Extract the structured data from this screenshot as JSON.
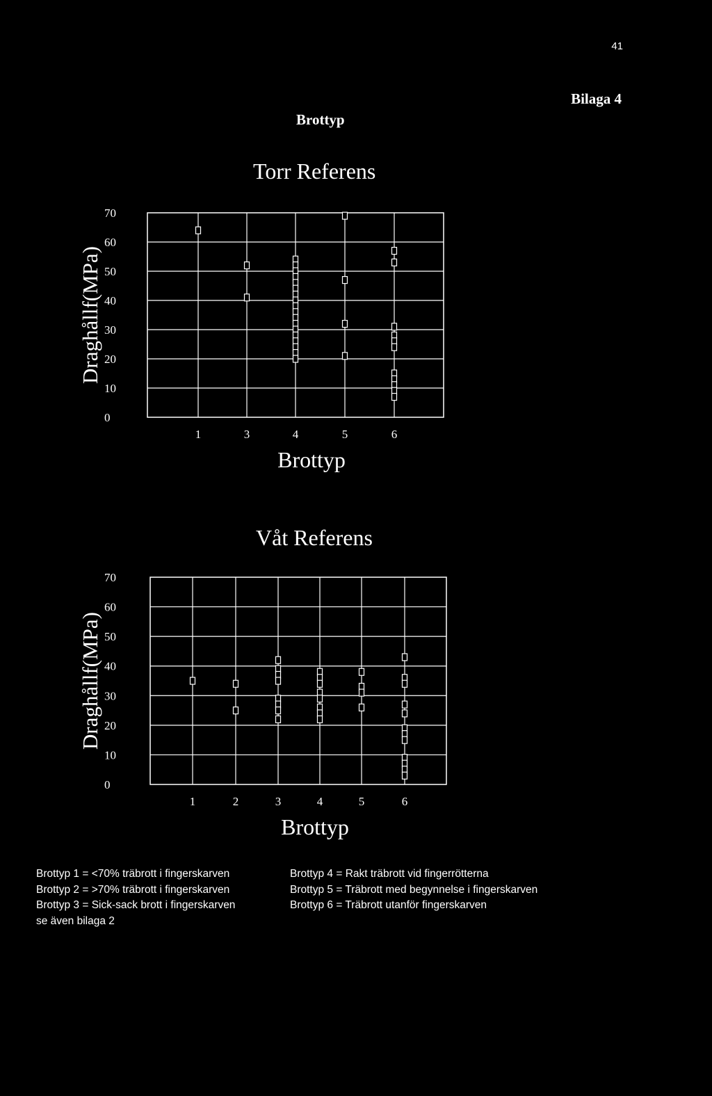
{
  "page_number": "41",
  "appendix_label": "Bilaga 4",
  "heading": "Brottyp",
  "chart_data": [
    {
      "type": "scatter",
      "title": "Torr Referens",
      "xlabel": "Brottyp",
      "ylabel": "Draghållf(MPa)",
      "categories": [
        "1",
        "3",
        "4",
        "5",
        "6"
      ],
      "yticks": [
        0,
        10,
        20,
        30,
        40,
        50,
        60,
        70
      ],
      "ylim": [
        0,
        70
      ],
      "grid": true,
      "points": [
        {
          "x": "1",
          "y": 64
        },
        {
          "x": "3",
          "y": 52
        },
        {
          "x": "3",
          "y": 41
        },
        {
          "x": "4",
          "y": 54
        },
        {
          "x": "4",
          "y": 52
        },
        {
          "x": "4",
          "y": 50
        },
        {
          "x": "4",
          "y": 48
        },
        {
          "x": "4",
          "y": 46
        },
        {
          "x": "4",
          "y": 44
        },
        {
          "x": "4",
          "y": 42
        },
        {
          "x": "4",
          "y": 40
        },
        {
          "x": "4",
          "y": 38
        },
        {
          "x": "4",
          "y": 36
        },
        {
          "x": "4",
          "y": 34
        },
        {
          "x": "4",
          "y": 32
        },
        {
          "x": "4",
          "y": 30
        },
        {
          "x": "4",
          "y": 28
        },
        {
          "x": "4",
          "y": 26
        },
        {
          "x": "4",
          "y": 24
        },
        {
          "x": "4",
          "y": 22
        },
        {
          "x": "4",
          "y": 20
        },
        {
          "x": "5",
          "y": 69
        },
        {
          "x": "5",
          "y": 47
        },
        {
          "x": "5",
          "y": 32
        },
        {
          "x": "5",
          "y": 21
        },
        {
          "x": "6",
          "y": 57
        },
        {
          "x": "6",
          "y": 53
        },
        {
          "x": "6",
          "y": 31
        },
        {
          "x": "6",
          "y": 28
        },
        {
          "x": "6",
          "y": 26
        },
        {
          "x": "6",
          "y": 24
        },
        {
          "x": "6",
          "y": 15
        },
        {
          "x": "6",
          "y": 13
        },
        {
          "x": "6",
          "y": 11
        },
        {
          "x": "6",
          "y": 9
        },
        {
          "x": "6",
          "y": 7
        }
      ]
    },
    {
      "type": "scatter",
      "title": "Våt Referens",
      "xlabel": "Brottyp",
      "ylabel": "Draghållf(MPa)",
      "categories": [
        "1",
        "2",
        "3",
        "4",
        "5",
        "6"
      ],
      "yticks": [
        0,
        10,
        20,
        30,
        40,
        50,
        60,
        70
      ],
      "ylim": [
        0,
        70
      ],
      "grid": true,
      "points": [
        {
          "x": "1",
          "y": 35
        },
        {
          "x": "2",
          "y": 34
        },
        {
          "x": "2",
          "y": 25
        },
        {
          "x": "3",
          "y": 42
        },
        {
          "x": "3",
          "y": 39
        },
        {
          "x": "3",
          "y": 37
        },
        {
          "x": "3",
          "y": 35
        },
        {
          "x": "3",
          "y": 29
        },
        {
          "x": "3",
          "y": 27
        },
        {
          "x": "3",
          "y": 25
        },
        {
          "x": "3",
          "y": 22
        },
        {
          "x": "4",
          "y": 38
        },
        {
          "x": "4",
          "y": 36
        },
        {
          "x": "4",
          "y": 34
        },
        {
          "x": "4",
          "y": 31
        },
        {
          "x": "4",
          "y": 29
        },
        {
          "x": "4",
          "y": 26
        },
        {
          "x": "4",
          "y": 24
        },
        {
          "x": "4",
          "y": 22
        },
        {
          "x": "5",
          "y": 38
        },
        {
          "x": "5",
          "y": 33
        },
        {
          "x": "5",
          "y": 31
        },
        {
          "x": "5",
          "y": 26
        },
        {
          "x": "6",
          "y": 43
        },
        {
          "x": "6",
          "y": 36
        },
        {
          "x": "6",
          "y": 34
        },
        {
          "x": "6",
          "y": 27
        },
        {
          "x": "6",
          "y": 24
        },
        {
          "x": "6",
          "y": 19
        },
        {
          "x": "6",
          "y": 17
        },
        {
          "x": "6",
          "y": 15
        },
        {
          "x": "6",
          "y": 9
        },
        {
          "x": "6",
          "y": 7
        },
        {
          "x": "6",
          "y": 5
        },
        {
          "x": "6",
          "y": 3
        }
      ]
    }
  ],
  "legend_left": [
    "Brottyp 1 = <70% träbrott i fingerskarven",
    "Brottyp 2 = >70% träbrott i fingerskarven",
    "Brottyp 3 = Sick-sack brott i fingerskarven",
    "se även bilaga 2"
  ],
  "legend_right": [
    "Brottyp 4 = Rakt träbrott vid fingerrötterna",
    "Brottyp 5 = Träbrott med begynnelse i fingerskarven",
    "Brottyp 6 = Träbrott utanför fingerskarven"
  ]
}
